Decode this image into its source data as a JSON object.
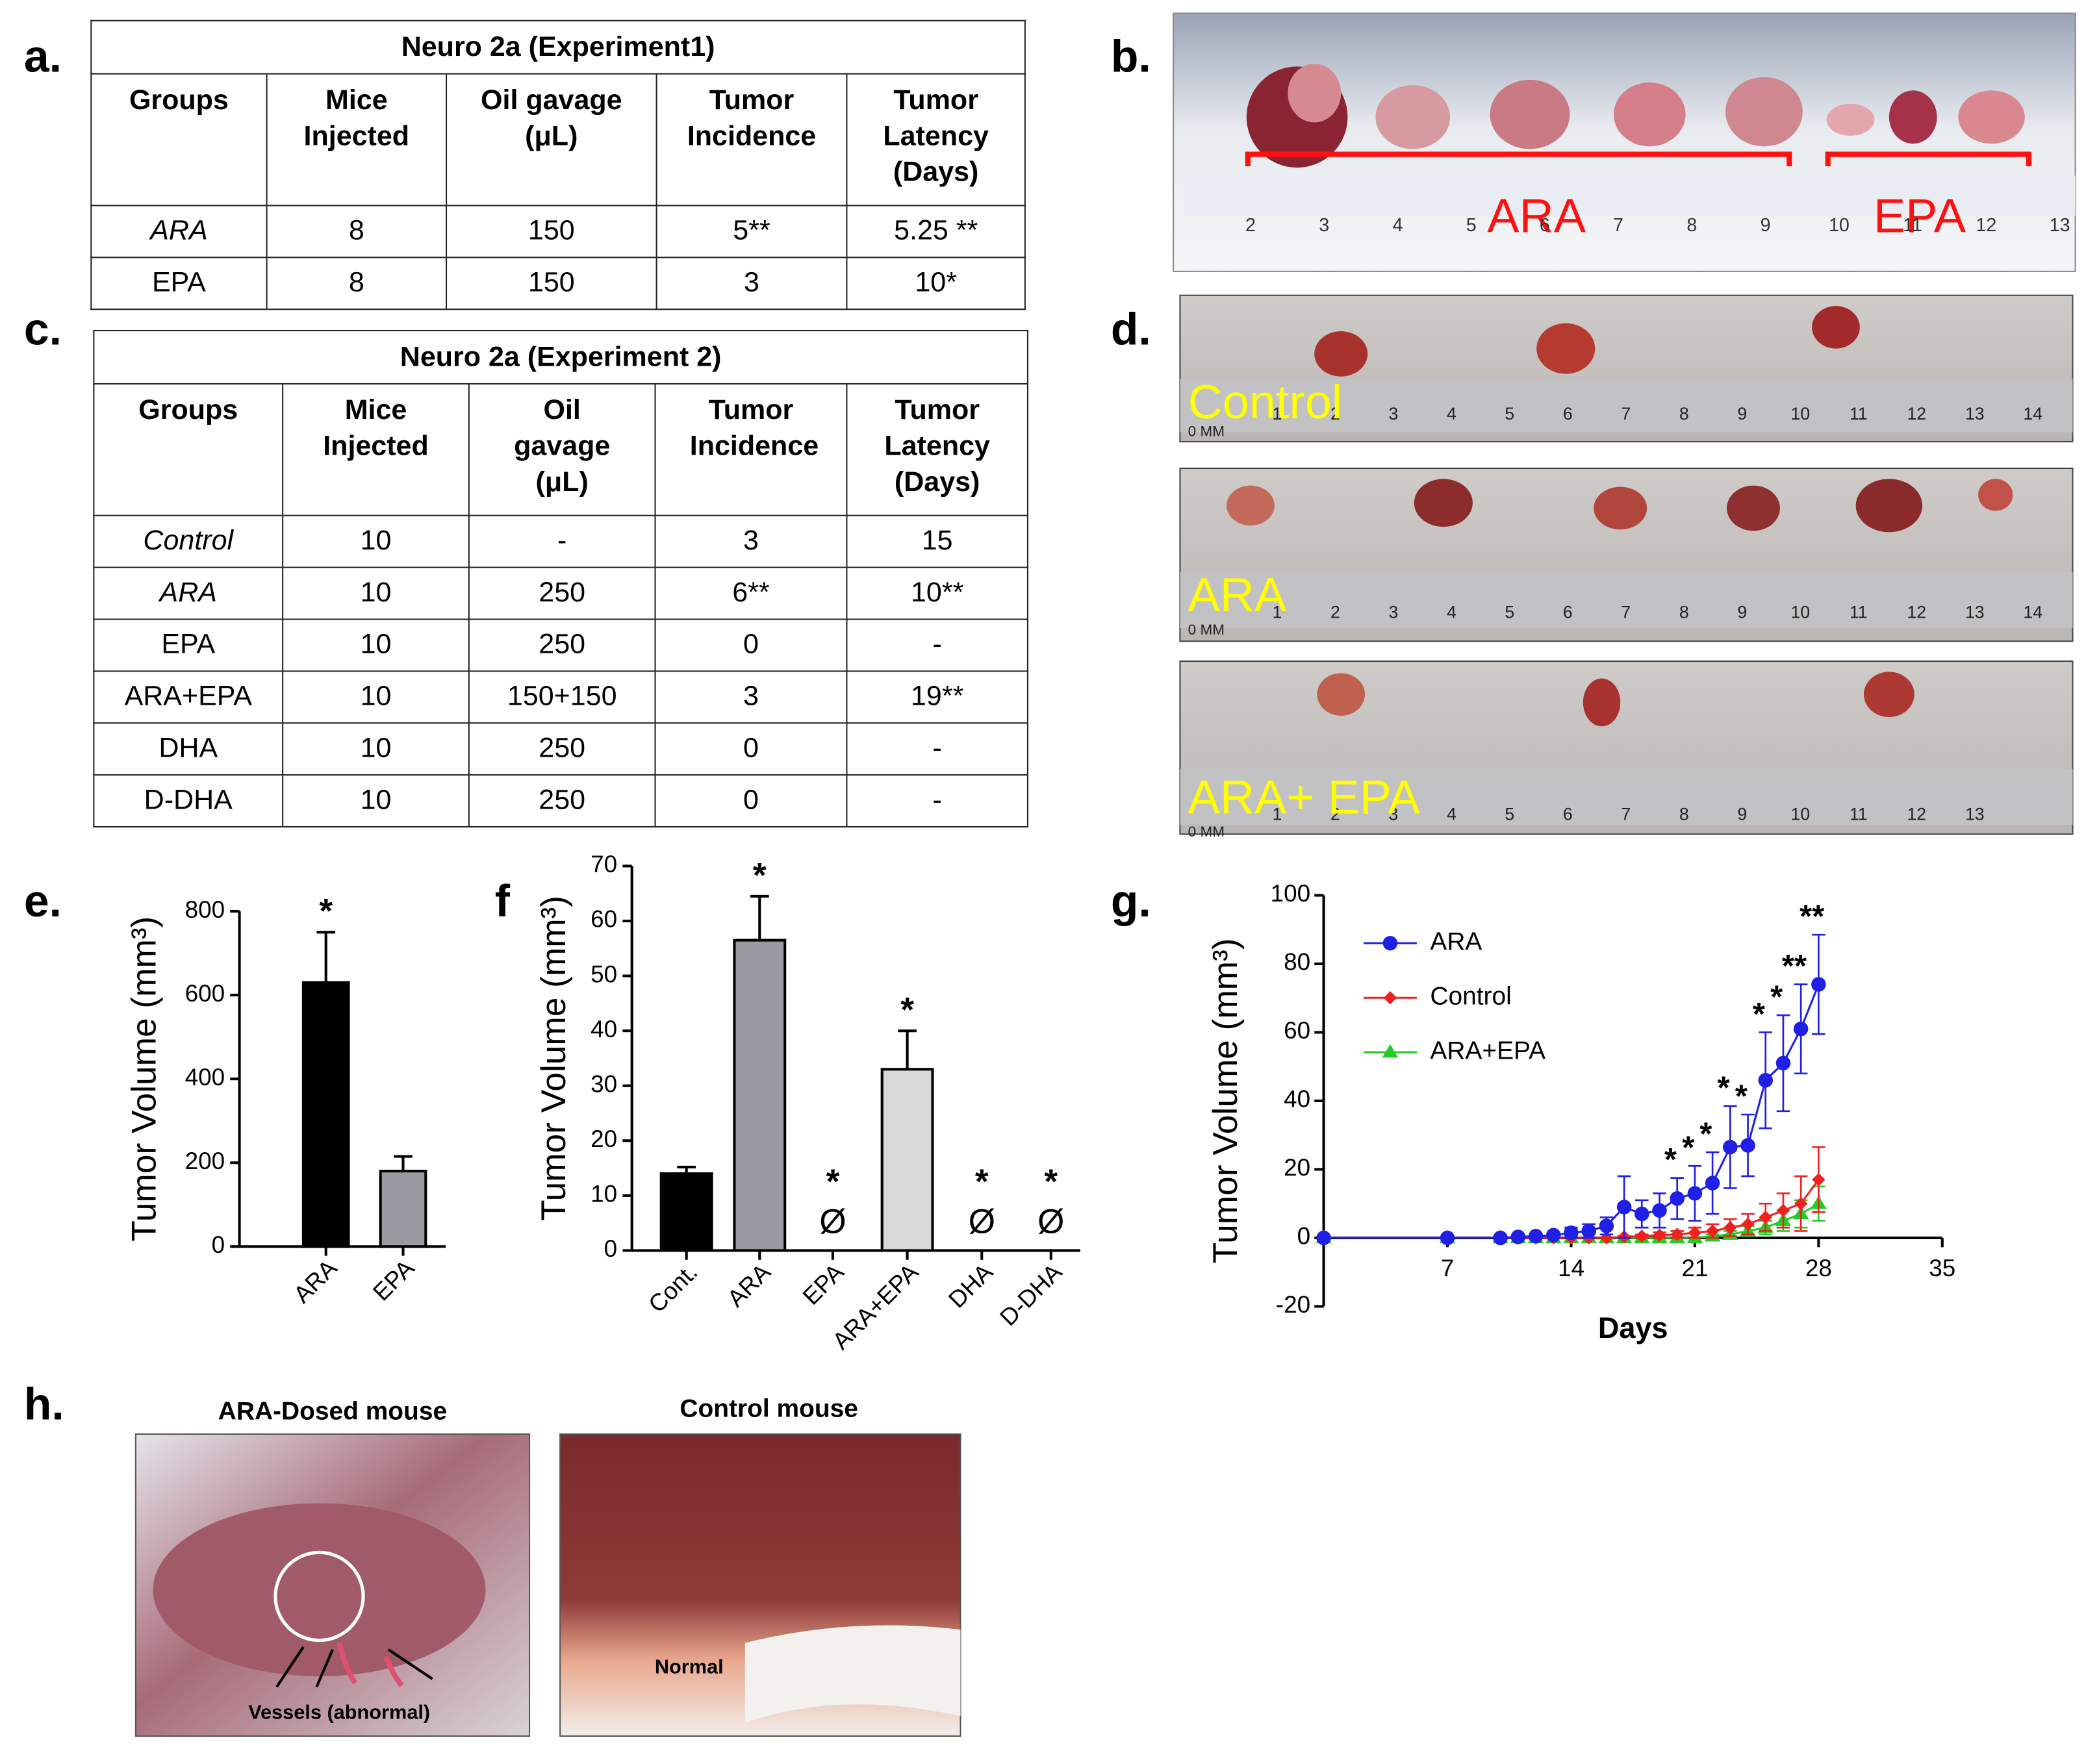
{
  "panel_labels": [
    "a.",
    "b.",
    "c.",
    "d.",
    "e.",
    "f",
    "g.",
    "h."
  ],
  "table_a": {
    "title": "Neuro 2a (Experiment1)",
    "columns": [
      "Groups",
      "Mice Injected",
      "Oil gavage (μL)",
      "Tumor Incidence",
      "Tumor Latency (Days)"
    ],
    "rows": [
      [
        "ARA",
        "8",
        "150",
        "5**",
        "5.25 **"
      ],
      [
        "EPA",
        "8",
        "150",
        "3",
        "10*"
      ]
    ],
    "italic_groups": [
      0
    ]
  },
  "table_c": {
    "title": "Neuro 2a (Experiment 2)",
    "columns": [
      "Groups",
      "Mice Injected",
      "Oil gavage (μL)",
      "Tumor Incidence",
      "Tumor Latency (Days)"
    ],
    "rows": [
      [
        "Control",
        "10",
        "-",
        "3",
        "15"
      ],
      [
        "ARA",
        "10",
        "250",
        "6**",
        "10**"
      ],
      [
        "EPA",
        "10",
        "250",
        "0",
        "-"
      ],
      [
        "ARA+EPA",
        "10",
        "150+150",
        "3",
        "19**"
      ],
      [
        "DHA",
        "10",
        "250",
        "0",
        "-"
      ],
      [
        "D-DHA",
        "10",
        "250",
        "0",
        "-"
      ]
    ],
    "italic_groups": [
      0,
      1
    ]
  },
  "photo_b": {
    "labels": [
      "ARA",
      "EPA"
    ],
    "ruler_numbers": [
      2,
      3,
      4,
      5,
      6,
      7,
      8,
      9,
      10,
      11,
      12,
      13
    ]
  },
  "photo_d": [
    {
      "label": "Control",
      "ruler_prefix": "0 MM",
      "ruler_numbers": [
        1,
        2,
        3,
        4,
        5,
        6,
        7,
        8,
        9,
        10,
        11,
        12,
        13,
        14
      ]
    },
    {
      "label": "ARA",
      "ruler_prefix": "0 MM",
      "ruler_numbers": [
        1,
        2,
        3,
        4,
        5,
        6,
        7,
        8,
        9,
        10,
        11,
        12,
        13,
        14
      ]
    },
    {
      "label": "ARA+ EPA",
      "ruler_prefix": "0 MM",
      "ruler_numbers": [
        1,
        2,
        3,
        4,
        5,
        6,
        7,
        8,
        9,
        10,
        11,
        12,
        13
      ]
    }
  ],
  "photo_h": {
    "titles": [
      "ARA-Dosed mouse",
      "Control mouse"
    ],
    "annotations": [
      "Vessels (abnormal)",
      "Normal"
    ]
  },
  "chart_data": [
    {
      "type": "bar",
      "ylabel": "Tumor Volume (mm³)",
      "categories": [
        "ARA",
        "EPA"
      ],
      "values": [
        630,
        180
      ],
      "errors": [
        120,
        35
      ],
      "colors": [
        "#000000",
        "#9a9aa2"
      ],
      "significance": [
        "*",
        null
      ],
      "ylim": [
        0,
        800
      ],
      "yticks": [
        0,
        200,
        400,
        600,
        800
      ]
    },
    {
      "type": "bar",
      "ylabel": "Tumor Volume (mm³)",
      "categories": [
        "Cont.",
        "ARA",
        "EPA",
        "ARA+EPA",
        "DHA",
        "D-DHA"
      ],
      "values": [
        14,
        56.5,
        0,
        33,
        0,
        0
      ],
      "errors": [
        1.2,
        8,
        null,
        7,
        null,
        null
      ],
      "colors": [
        "#000000",
        "#9a9aa2",
        null,
        "#d8d8d8",
        null,
        null
      ],
      "significance": [
        null,
        "*",
        "*",
        "*",
        "*",
        "*"
      ],
      "markers": [
        null,
        null,
        "Ø",
        null,
        "Ø",
        "Ø"
      ],
      "ylim": [
        0,
        70
      ],
      "yticks": [
        0,
        10,
        20,
        30,
        40,
        50,
        60,
        70
      ]
    },
    {
      "type": "line",
      "ylabel": "Tumor Volume (mm³)",
      "xlabel": "Days",
      "x": [
        0,
        7,
        10,
        11,
        12,
        13,
        14,
        15,
        16,
        17,
        18,
        19,
        20,
        21,
        22,
        23,
        24,
        25,
        26,
        27,
        28
      ],
      "series": [
        {
          "name": "ARA",
          "color": "#1f1fe6",
          "marker": "circle",
          "values": [
            0,
            0,
            0,
            0.3,
            0.5,
            0.8,
            1.5,
            2,
            3.5,
            9,
            7,
            8,
            11.5,
            13,
            16,
            26.5,
            27,
            46,
            51,
            61,
            74
          ],
          "errors": [
            0,
            0,
            0,
            0.3,
            0.5,
            0.8,
            1.5,
            2,
            2.5,
            9,
            4,
            5,
            6,
            8,
            9,
            12,
            9,
            14,
            14,
            13,
            14.5
          ]
        },
        {
          "name": "Control",
          "color": "#f02020",
          "marker": "diamond",
          "values": [
            0,
            0,
            0,
            0,
            0,
            0,
            0,
            0,
            0,
            0.3,
            0.5,
            0.8,
            1,
            1.5,
            2,
            3,
            4,
            6,
            8,
            10,
            17
          ],
          "errors": [
            0,
            0,
            0,
            0,
            0,
            0,
            0,
            0,
            0,
            0.3,
            0.5,
            0.8,
            1,
            1.5,
            2,
            2.5,
            3,
            4,
            5,
            8,
            9.5
          ]
        },
        {
          "name": "ARA+EPA",
          "color": "#22cc22",
          "marker": "triangle",
          "values": [
            0,
            0,
            0,
            0,
            0,
            0,
            0,
            0,
            0,
            0,
            0,
            0,
            0,
            0,
            0.5,
            1,
            2,
            3,
            5,
            7,
            10
          ],
          "errors": [
            0,
            0,
            0,
            0,
            0,
            0,
            0,
            0,
            0,
            0,
            0,
            0,
            0,
            0,
            0.5,
            1,
            1.5,
            2,
            3,
            4,
            5
          ]
        }
      ],
      "annotations": [
        {
          "x": 20,
          "text": "*"
        },
        {
          "x": 21,
          "text": "*"
        },
        {
          "x": 22,
          "text": "*"
        },
        {
          "x": 23,
          "text": "*"
        },
        {
          "x": 24,
          "text": "*"
        },
        {
          "x": 25,
          "text": "*"
        },
        {
          "x": 26,
          "text": "*"
        },
        {
          "x": 27,
          "text": "**"
        },
        {
          "x": 28,
          "text": "**"
        }
      ],
      "xlim": [
        0,
        35
      ],
      "xticks": [
        7,
        14,
        21,
        28,
        35
      ],
      "ylim": [
        -20,
        100
      ],
      "yticks": [
        -20,
        0,
        20,
        40,
        60,
        80,
        100
      ],
      "legend": "upper left"
    }
  ]
}
